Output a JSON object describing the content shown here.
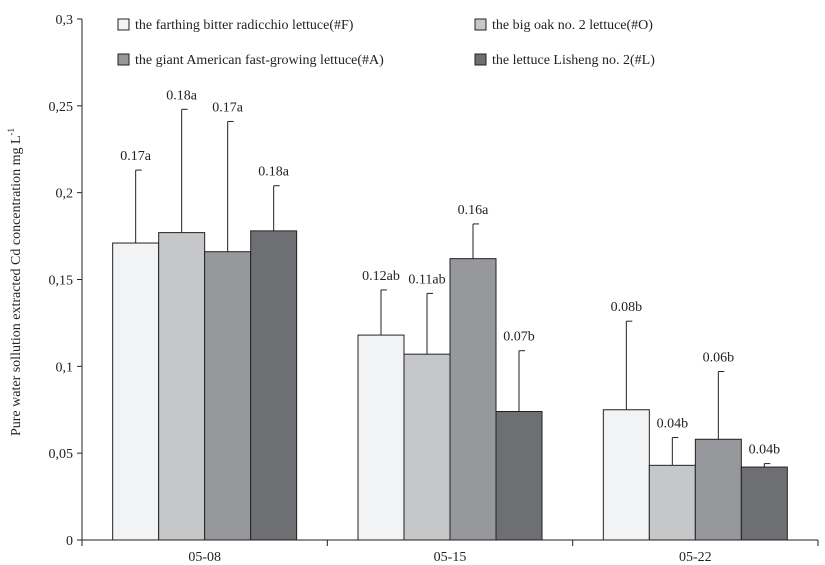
{
  "chart_data": {
    "type": "bar",
    "categories": [
      "05-08",
      "05-15",
      "05-22"
    ],
    "ylabel": "Pure water sollution extracted Cd concentration  mg L",
    "ylabel_superscript": "-1",
    "ylim": [
      0,
      0.3
    ],
    "yticks": [
      "0",
      "0,05",
      "0,1",
      "0,15",
      "0,2",
      "0,25",
      "0,3"
    ],
    "legend_position": "top",
    "series": [
      {
        "name": "the farthing bitter radicchio lettuce(#F)",
        "color": "#f2f3f5",
        "values": [
          0.171,
          0.118,
          0.075
        ],
        "errors": [
          0.042,
          0.026,
          0.051
        ],
        "labels": [
          "0.17a",
          "0.12ab",
          "0.08b"
        ]
      },
      {
        "name": "the big oak no. 2 lettuce(#O)",
        "color": "#c6c7c9",
        "values": [
          0.177,
          0.107,
          0.043
        ],
        "errors": [
          0.071,
          0.035,
          0.016
        ],
        "labels": [
          "0.18a",
          "0.11ab",
          "0.04b"
        ]
      },
      {
        "name": "the giant American fast-growing lettuce(#A)",
        "color": "#97989b",
        "values": [
          0.166,
          0.162,
          0.058
        ],
        "errors": [
          0.075,
          0.02,
          0.039
        ],
        "labels": [
          "0.17a",
          "0.16a",
          "0.06b"
        ]
      },
      {
        "name": "the lettuce Lisheng no. 2(#L)",
        "color": "#6e6f72",
        "values": [
          0.178,
          0.074,
          0.042
        ],
        "errors": [
          0.026,
          0.035,
          0.002
        ],
        "labels": [
          "0.18a",
          "0.07b",
          "0.04b"
        ]
      }
    ]
  }
}
